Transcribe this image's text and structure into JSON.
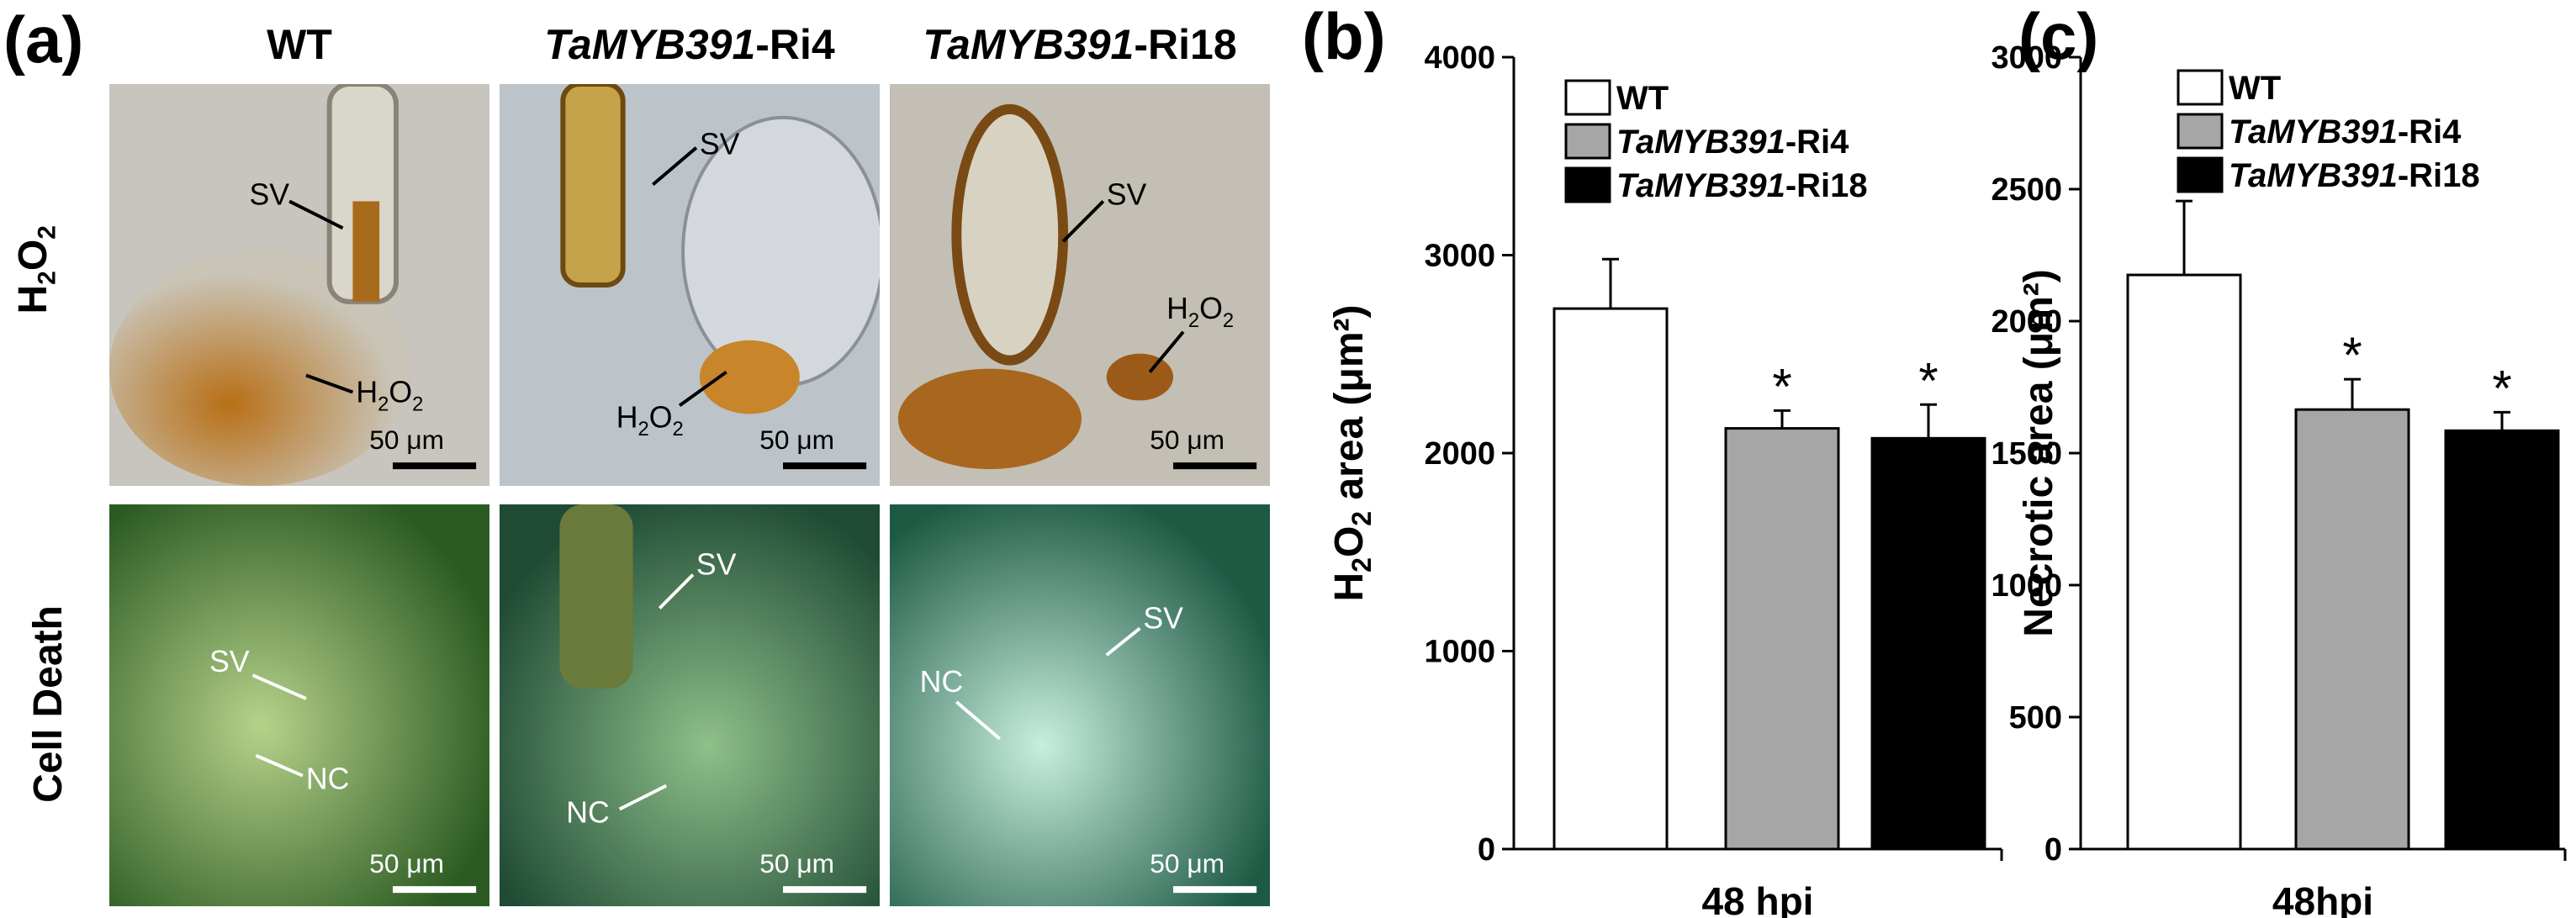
{
  "panels": {
    "a": "(a)",
    "b": "(b)",
    "c": "(c)"
  },
  "columns": [
    {
      "pre": "",
      "italic": "",
      "suffix": "WT"
    },
    {
      "pre": "",
      "italic": "TaMYB391",
      "suffix": "-Ri4"
    },
    {
      "pre": "",
      "italic": "TaMYB391",
      "suffix": "-Ri18"
    }
  ],
  "rows": {
    "top": "H2O2",
    "bottom": "Cell Death"
  },
  "micro_labels": {
    "sv": "SV",
    "nc": "NC",
    "h2o2_main": "H",
    "h2o2_sub": "2",
    "h2o2_o": "O",
    "scale": "50 μm"
  },
  "colors": {
    "wt": "#ffffff",
    "ri4": "#a6a6a6",
    "ri18": "#000000",
    "stain_brown": "#b06a14",
    "fluor_green": "#4f8f3a"
  },
  "chart_data": [
    {
      "type": "bar",
      "panel": "(b)",
      "categories": [
        "48 hpi"
      ],
      "series": [
        {
          "name_italic": "",
          "name_rest": "WT",
          "values": [
            2730
          ],
          "error": [
            250
          ],
          "sig": ""
        },
        {
          "name_italic": "TaMYB391",
          "name_rest": "-Ri4",
          "values": [
            2125
          ],
          "error": [
            90
          ],
          "sig": "*"
        },
        {
          "name_italic": "TaMYB391",
          "name_rest": "-Ri18",
          "values": [
            2075
          ],
          "error": [
            170
          ],
          "sig": "*"
        }
      ],
      "ylabel_pre": "H",
      "ylabel_sub": "2",
      "ylabel_o": "O",
      "ylabel_sub2": "2",
      "ylabel_post": " area (μm²)",
      "ylim": [
        0,
        4000
      ],
      "yticks": [
        "0",
        "1000",
        "2000",
        "3000",
        "4000"
      ],
      "legend": "top-right",
      "grid": false
    },
    {
      "type": "bar",
      "panel": "(c)",
      "categories": [
        "48hpi"
      ],
      "series": [
        {
          "name_italic": "",
          "name_rest": "WT",
          "values": [
            2175
          ],
          "error": [
            280
          ],
          "sig": ""
        },
        {
          "name_italic": "TaMYB391",
          "name_rest": "-Ri4",
          "values": [
            1665
          ],
          "error": [
            115
          ],
          "sig": "*"
        },
        {
          "name_italic": "TaMYB391",
          "name_rest": "-Ri18",
          "values": [
            1585
          ],
          "error": [
            70
          ],
          "sig": "*"
        }
      ],
      "ylabel": "Necrotic area (μm²)",
      "ylim": [
        0,
        3000
      ],
      "yticks": [
        "0",
        "500",
        "1000",
        "1500",
        "2000",
        "2500",
        "3000"
      ],
      "legend": "top-right",
      "grid": false
    }
  ]
}
